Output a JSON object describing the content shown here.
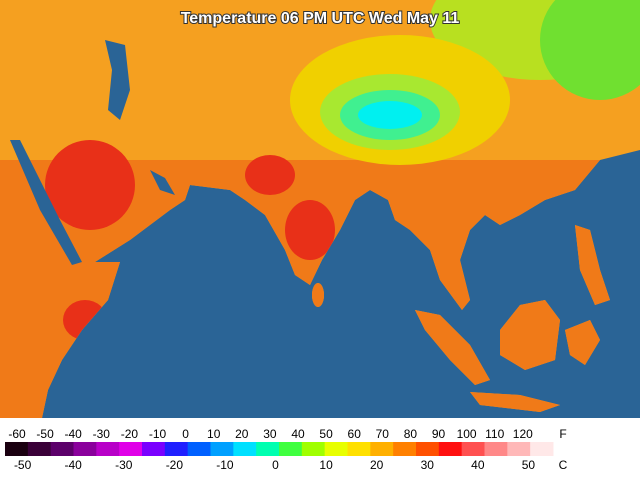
{
  "map": {
    "title": "Temperature 06 PM UTC Wed May 11",
    "legend": {
      "f_unit": "F",
      "c_unit": "C",
      "f_ticks": [
        -60,
        -50,
        -40,
        -30,
        -20,
        -10,
        0,
        10,
        20,
        30,
        40,
        50,
        60,
        70,
        80,
        90,
        100,
        110,
        120
      ],
      "c_ticks": [
        -50,
        -40,
        -30,
        -20,
        -10,
        0,
        10,
        20,
        30,
        40,
        50
      ],
      "colors": [
        "#1a0010",
        "#3a0038",
        "#5c006a",
        "#8a009c",
        "#b800c8",
        "#e000e8",
        "#7a00ff",
        "#2020ff",
        "#0060ff",
        "#00a0ff",
        "#00e0ff",
        "#00ffb0",
        "#40ff40",
        "#a0ff00",
        "#e8ff00",
        "#ffe000",
        "#ffb000",
        "#ff8000",
        "#ff5000",
        "#ff1010",
        "#ff5050",
        "#ff8888",
        "#ffb8b8",
        "#ffe8e8"
      ]
    }
  }
}
